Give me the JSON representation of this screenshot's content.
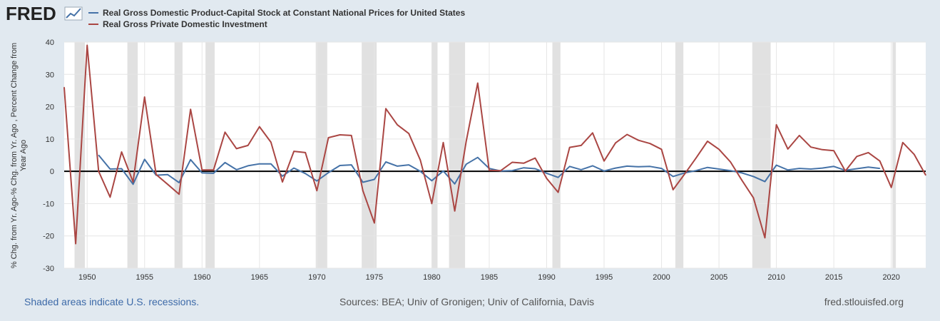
{
  "logo": {
    "text": "FRED"
  },
  "footer": {
    "recession_note": "Shaded areas indicate U.S. recessions.",
    "sources": "Sources: BEA; Univ of Gronigen; Univ of California, Davis",
    "site": "fred.stlouisfed.org"
  },
  "colors": {
    "background": "#e1e9f0",
    "plot_bg": "#ffffff",
    "series1": "#4572a7",
    "series2": "#aa4643",
    "recession": "#e1e1e1",
    "zero_line": "#000000"
  },
  "chart_data": {
    "type": "line",
    "ylabel": "% Chg. from Yr. Ago-% Chg. from Yr. Ago , Percent Change from Year Ago",
    "xlim": [
      1948,
      2023
    ],
    "ylim": [
      -30,
      40
    ],
    "yticks": [
      -30,
      -20,
      -10,
      0,
      10,
      20,
      30,
      40
    ],
    "xticks": [
      1950,
      1955,
      1960,
      1965,
      1970,
      1975,
      1980,
      1985,
      1990,
      1995,
      2000,
      2005,
      2010,
      2015,
      2020
    ],
    "grid": true,
    "legend_position": "top-left",
    "recessions": [
      [
        1948.9,
        1949.8
      ],
      [
        1953.5,
        1954.4
      ],
      [
        1957.6,
        1958.3
      ],
      [
        1960.3,
        1961.1
      ],
      [
        1969.9,
        1970.9
      ],
      [
        1973.9,
        1975.2
      ],
      [
        1980.0,
        1980.5
      ],
      [
        1981.5,
        1982.9
      ],
      [
        1990.5,
        1991.2
      ],
      [
        2001.2,
        2001.9
      ],
      [
        2007.9,
        2009.5
      ],
      [
        2020.1,
        2020.4
      ]
    ],
    "series": [
      {
        "name": "Real Gross Domestic Product-Capital Stock at Constant National Prices for United States",
        "color": "#4572a7",
        "x": [
          1951,
          1952,
          1953,
          1954,
          1955,
          1956,
          1957,
          1958,
          1959,
          1960,
          1961,
          1962,
          1963,
          1964,
          1965,
          1966,
          1967,
          1968,
          1969,
          1970,
          1971,
          1972,
          1973,
          1974,
          1975,
          1976,
          1977,
          1978,
          1979,
          1980,
          1981,
          1982,
          1983,
          1984,
          1985,
          1986,
          1987,
          1988,
          1989,
          1990,
          1991,
          1992,
          1993,
          1994,
          1995,
          1996,
          1997,
          1998,
          1999,
          2000,
          2001,
          2002,
          2003,
          2004,
          2005,
          2006,
          2007,
          2008,
          2009,
          2010,
          2011,
          2012,
          2013,
          2014,
          2015,
          2016,
          2017,
          2018,
          2019
        ],
        "values": [
          5.0,
          0.7,
          0.8,
          -4.0,
          3.7,
          -1.2,
          -1.0,
          -3.5,
          3.6,
          -0.5,
          -0.6,
          2.7,
          0.5,
          1.7,
          2.3,
          2.3,
          -1.5,
          1.0,
          -0.7,
          -3.0,
          -0.4,
          1.8,
          2.0,
          -3.4,
          -2.5,
          2.9,
          1.6,
          2.0,
          0.0,
          -2.9,
          0.1,
          -3.9,
          2.2,
          4.3,
          0.9,
          0.1,
          0.2,
          1.1,
          0.8,
          -0.6,
          -1.9,
          1.5,
          0.5,
          1.7,
          0.1,
          1.0,
          1.6,
          1.4,
          1.5,
          0.9,
          -1.6,
          -0.5,
          0.2,
          1.2,
          0.7,
          0.2,
          -0.5,
          -1.6,
          -3.2,
          1.9,
          0.4,
          0.9,
          0.7,
          1.0,
          1.5,
          0.3,
          0.8,
          1.3,
          0.9
        ]
      },
      {
        "name": "Real Gross Private Domestic Investment",
        "color": "#aa4643",
        "x": [
          1948,
          1949,
          1950,
          1951,
          1952,
          1953,
          1954,
          1955,
          1956,
          1957,
          1958,
          1959,
          1960,
          1961,
          1962,
          1963,
          1964,
          1965,
          1966,
          1967,
          1968,
          1969,
          1970,
          1971,
          1972,
          1973,
          1974,
          1975,
          1976,
          1977,
          1978,
          1979,
          1980,
          1981,
          1982,
          1983,
          1984,
          1985,
          1986,
          1987,
          1988,
          1989,
          1990,
          1991,
          1992,
          1993,
          1994,
          1995,
          1996,
          1997,
          1998,
          1999,
          2000,
          2001,
          2002,
          2003,
          2004,
          2005,
          2006,
          2007,
          2008,
          2009,
          2010,
          2011,
          2012,
          2013,
          2014,
          2015,
          2016,
          2017,
          2018,
          2019,
          2020,
          2021,
          2022,
          2023
        ],
        "values": [
          26.0,
          -22.4,
          39.0,
          0.0,
          -8.0,
          6.0,
          -3.3,
          23.0,
          -1.0,
          -4.0,
          -7.1,
          19.2,
          0.4,
          0.4,
          12.1,
          7.0,
          8.0,
          13.8,
          9.0,
          -3.3,
          6.2,
          5.8,
          -6.0,
          10.4,
          11.3,
          11.1,
          -6.0,
          -16.0,
          19.4,
          14.4,
          11.7,
          3.5,
          -10.0,
          8.9,
          -12.3,
          9.3,
          27.3,
          0.3,
          0.2,
          2.8,
          2.5,
          4.1,
          -2.2,
          -6.5,
          7.4,
          8.0,
          11.9,
          3.2,
          8.8,
          11.4,
          9.6,
          8.6,
          6.8,
          -5.7,
          -0.9,
          4.1,
          9.3,
          6.8,
          2.9,
          -2.8,
          -8.2,
          -20.6,
          14.4,
          6.9,
          11.1,
          7.5,
          6.7,
          6.4,
          0.1,
          4.6,
          5.8,
          3.2,
          -5.0,
          8.9,
          5.2,
          -1.2
        ]
      }
    ]
  }
}
